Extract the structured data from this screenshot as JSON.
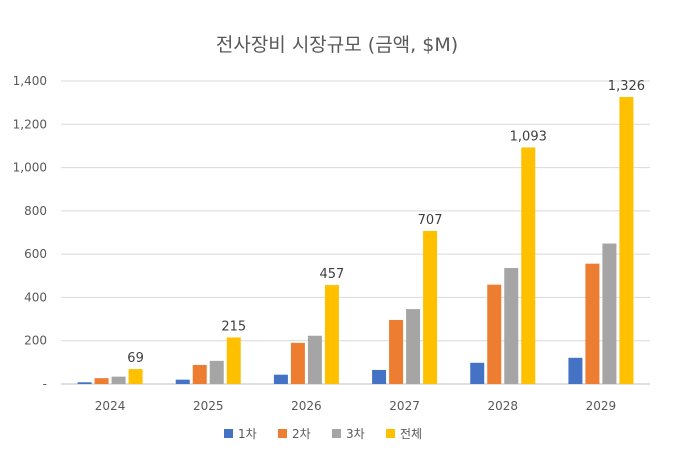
{
  "chart_data": {
    "type": "bar",
    "title": "전사장비 시장규모 (금액, $M)",
    "categories": [
      "2024",
      "2025",
      "2026",
      "2027",
      "2028",
      "2029"
    ],
    "series": [
      {
        "name": "1차",
        "color": "#4472C4",
        "values": [
          8,
          20,
          43,
          65,
          98,
          121
        ]
      },
      {
        "name": "2차",
        "color": "#ED7D31",
        "values": [
          27,
          88,
          190,
          296,
          459,
          556
        ]
      },
      {
        "name": "3차",
        "color": "#A5A5A5",
        "values": [
          34,
          107,
          223,
          346,
          536,
          649
        ]
      },
      {
        "name": "전체",
        "color": "#FFC000",
        "values": [
          69,
          215,
          457,
          707,
          1093,
          1326
        ]
      }
    ],
    "data_labels": {
      "series": "전체",
      "texts": [
        "69",
        "215",
        "457",
        "707",
        "1,093",
        "1,326"
      ]
    },
    "ylim": [
      0,
      1400
    ],
    "yticks": [
      {
        "value": 0,
        "label": "-"
      },
      {
        "value": 200,
        "label": "200"
      },
      {
        "value": 400,
        "label": "400"
      },
      {
        "value": 600,
        "label": "600"
      },
      {
        "value": 800,
        "label": "800"
      },
      {
        "value": 1000,
        "label": "1,000"
      },
      {
        "value": 1200,
        "label": "1,200"
      },
      {
        "value": 1400,
        "label": "1,400"
      }
    ],
    "grid": true,
    "legend_position": "bottom"
  }
}
